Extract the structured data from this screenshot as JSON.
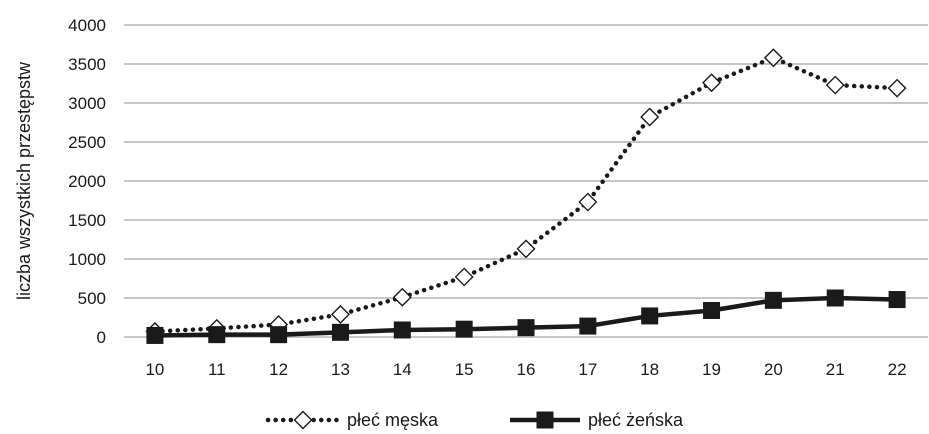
{
  "chart_data": {
    "type": "line",
    "title": "",
    "xlabel": "",
    "ylabel": "liczba wszystkich przestępstw",
    "categories": [
      "10",
      "11",
      "12",
      "13",
      "14",
      "15",
      "16",
      "17",
      "18",
      "19",
      "20",
      "21",
      "22"
    ],
    "ylim": [
      0,
      4000
    ],
    "yticks": [
      0,
      500,
      1000,
      1500,
      2000,
      2500,
      3000,
      3500,
      4000
    ],
    "grid": true,
    "legend_position": "bottom",
    "series": [
      {
        "name": "płeć męska",
        "values": [
          70,
          110,
          160,
          290,
          510,
          770,
          1130,
          1730,
          2820,
          3260,
          3580,
          3230,
          3190
        ],
        "color": "#1a1a1a",
        "line_style": "dotted",
        "marker": "open-diamond"
      },
      {
        "name": "płeć żeńska",
        "values": [
          20,
          30,
          30,
          60,
          90,
          100,
          120,
          140,
          270,
          340,
          470,
          500,
          480
        ],
        "color": "#1a1a1a",
        "line_style": "solid",
        "marker": "filled-square"
      }
    ]
  }
}
